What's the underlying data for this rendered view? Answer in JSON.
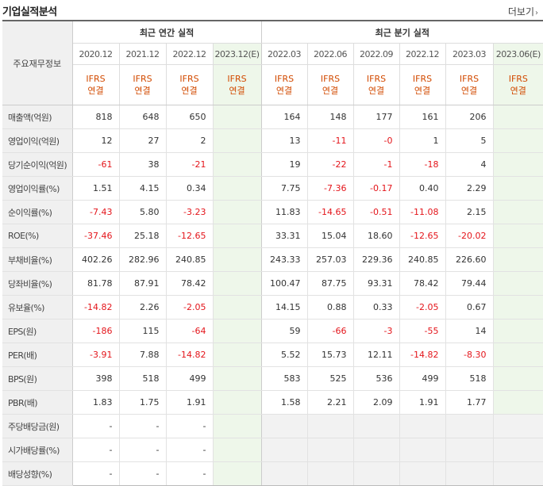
{
  "title": "기업실적분석",
  "more_label": "더보기",
  "more_icon": "chevron-right-icon",
  "table": {
    "row_header_label": "주요재무정보",
    "annual_group_label": "최근 연간 실적",
    "quarter_group_label": "최근 분기 실적",
    "annual_periods": [
      "2020.12",
      "2021.12",
      "2022.12",
      "2023.12(E)"
    ],
    "quarter_periods": [
      "2022.03",
      "2022.06",
      "2022.09",
      "2022.12",
      "2023.03",
      "2023.06(E)"
    ],
    "ifrs_line1": "IFRS",
    "ifrs_line2": "연결",
    "rows": [
      {
        "label": "매출액(억원)",
        "annual": [
          "818",
          "648",
          "650",
          ""
        ],
        "quarter": [
          "164",
          "148",
          "177",
          "161",
          "206",
          ""
        ]
      },
      {
        "label": "영업이익(억원)",
        "annual": [
          "12",
          "27",
          "2",
          ""
        ],
        "quarter": [
          "13",
          "-11",
          "-0",
          "1",
          "5",
          ""
        ]
      },
      {
        "label": "당기순이익(억원)",
        "annual": [
          "-61",
          "38",
          "-21",
          ""
        ],
        "quarter": [
          "19",
          "-22",
          "-1",
          "-18",
          "4",
          ""
        ]
      },
      {
        "label": "영업이익률(%)",
        "annual": [
          "1.51",
          "4.15",
          "0.34",
          ""
        ],
        "quarter": [
          "7.75",
          "-7.36",
          "-0.17",
          "0.40",
          "2.29",
          ""
        ]
      },
      {
        "label": "순이익률(%)",
        "annual": [
          "-7.43",
          "5.80",
          "-3.23",
          ""
        ],
        "quarter": [
          "11.83",
          "-14.65",
          "-0.51",
          "-11.08",
          "2.15",
          ""
        ]
      },
      {
        "label": "ROE(%)",
        "annual": [
          "-37.46",
          "25.18",
          "-12.65",
          ""
        ],
        "quarter": [
          "33.31",
          "15.04",
          "18.60",
          "-12.65",
          "-20.02",
          ""
        ]
      },
      {
        "label": "부채비율(%)",
        "annual": [
          "402.26",
          "282.96",
          "240.85",
          ""
        ],
        "quarter": [
          "243.33",
          "257.03",
          "229.36",
          "240.85",
          "226.60",
          ""
        ]
      },
      {
        "label": "당좌비율(%)",
        "annual": [
          "81.78",
          "87.91",
          "78.42",
          ""
        ],
        "quarter": [
          "100.47",
          "87.75",
          "93.31",
          "78.42",
          "79.44",
          ""
        ]
      },
      {
        "label": "유보율(%)",
        "annual": [
          "-14.82",
          "2.26",
          "-2.05",
          ""
        ],
        "quarter": [
          "14.15",
          "0.88",
          "0.33",
          "-2.05",
          "0.67",
          ""
        ]
      },
      {
        "label": "EPS(원)",
        "annual": [
          "-186",
          "115",
          "-64",
          ""
        ],
        "quarter": [
          "59",
          "-66",
          "-3",
          "-55",
          "14",
          ""
        ]
      },
      {
        "label": "PER(배)",
        "annual": [
          "-3.91",
          "7.88",
          "-14.82",
          ""
        ],
        "quarter": [
          "5.52",
          "15.73",
          "12.11",
          "-14.82",
          "-8.30",
          ""
        ]
      },
      {
        "label": "BPS(원)",
        "annual": [
          "398",
          "518",
          "499",
          ""
        ],
        "quarter": [
          "583",
          "525",
          "536",
          "499",
          "518",
          ""
        ]
      },
      {
        "label": "PBR(배)",
        "annual": [
          "1.83",
          "1.75",
          "1.91",
          ""
        ],
        "quarter": [
          "1.58",
          "2.21",
          "2.09",
          "1.91",
          "1.77",
          ""
        ]
      },
      {
        "label": "주당배당금(원)",
        "annual": [
          "-",
          "-",
          "-",
          ""
        ],
        "quarter": [
          "",
          "",
          "",
          "",
          "",
          ""
        ]
      },
      {
        "label": "시가배당률(%)",
        "annual": [
          "-",
          "-",
          "-",
          ""
        ],
        "quarter": [
          "",
          "",
          "",
          "",
          "",
          ""
        ]
      },
      {
        "label": "배당성향(%)",
        "annual": [
          "-",
          "-",
          "-",
          ""
        ],
        "quarter": [
          "",
          "",
          "",
          "",
          "",
          ""
        ]
      }
    ],
    "colors": {
      "negative": "#e4151b",
      "ifrs": "#d24a00",
      "estimate_bg": "#eef7ea"
    }
  }
}
